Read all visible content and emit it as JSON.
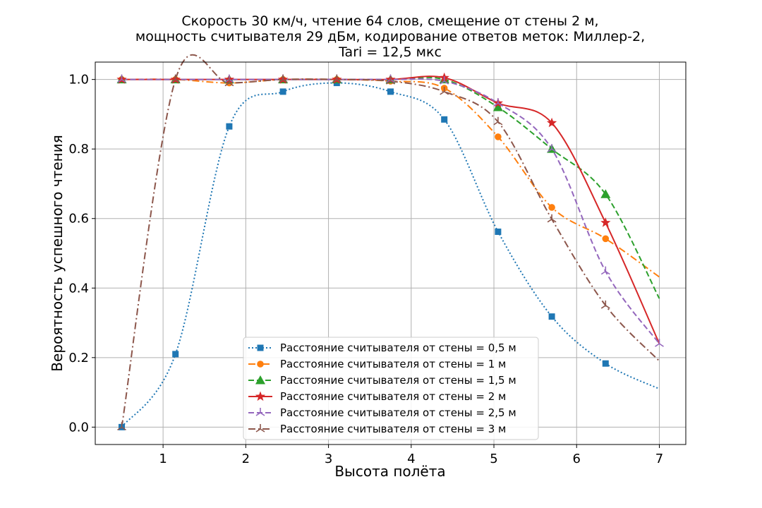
{
  "chart_data": {
    "type": "line",
    "title": [
      "Скорость 30 км/ч, чтение 64 слов, смещение от стены 2 м,",
      "мощность считывателя 29 дБм, кодирование ответов меток: Миллер-2,",
      "Tari = 12,5 мкс"
    ],
    "xlabel": "Высота полёта",
    "ylabel": "Вероятность успешного чтения",
    "xlim": [
      0.18,
      7.32
    ],
    "ylim": [
      -0.05,
      1.05
    ],
    "xticks": [
      "1",
      "2",
      "3",
      "4",
      "5",
      "6",
      "7"
    ],
    "yticks": [
      "0.0",
      "0.2",
      "0.4",
      "0.6",
      "0.8",
      "1.0"
    ],
    "grid": true,
    "legend_position": "lower-center",
    "series": [
      {
        "name": "Расстояние считывателя от стены = 0,5 м",
        "color": "#1f77b4",
        "style": "dotted",
        "marker": "square",
        "x": [
          0.5,
          1.15,
          1.8,
          2.45,
          3.1,
          3.75,
          4.4,
          5.05,
          5.7,
          6.35,
          7.0
        ],
        "y": [
          0.0,
          0.21,
          0.865,
          0.965,
          0.99,
          0.965,
          0.885,
          0.562,
          0.318,
          0.183,
          0.11
        ],
        "marker_x": [
          0.5,
          1.15,
          1.8,
          2.45,
          3.1,
          3.75,
          4.4,
          5.05,
          5.7,
          6.35
        ],
        "marker_y": [
          0.0,
          0.21,
          0.865,
          0.965,
          0.99,
          0.965,
          0.885,
          0.562,
          0.318,
          0.183
        ]
      },
      {
        "name": "Расстояние считывателя от стены = 1 м",
        "color": "#ff7f0e",
        "style": "dashdot",
        "marker": "circle",
        "x": [
          0.5,
          1.15,
          1.8,
          2.45,
          3.1,
          3.75,
          4.4,
          5.05,
          5.7,
          6.35,
          7.0
        ],
        "y": [
          1.0,
          1.0,
          0.99,
          1.0,
          1.0,
          0.995,
          0.975,
          0.835,
          0.632,
          0.542,
          0.432
        ],
        "marker_x": [
          0.5,
          1.15,
          1.8,
          2.45,
          3.1,
          3.75,
          4.4,
          5.05,
          5.7,
          6.35
        ],
        "marker_y": [
          1.0,
          1.0,
          0.99,
          1.0,
          1.0,
          0.995,
          0.975,
          0.835,
          0.632,
          0.542
        ]
      },
      {
        "name": "Расстояние считывателя от стены = 1,5 м",
        "color": "#2ca02c",
        "style": "dashed",
        "marker": "triangle",
        "x": [
          0.5,
          1.15,
          1.8,
          2.45,
          3.1,
          3.75,
          4.4,
          5.05,
          5.7,
          6.35,
          7.0
        ],
        "y": [
          1.0,
          1.0,
          1.0,
          1.0,
          1.0,
          1.0,
          1.0,
          0.92,
          0.8,
          0.67,
          0.37
        ],
        "marker_x": [
          0.5,
          1.15,
          1.8,
          2.45,
          3.1,
          3.75,
          4.4,
          5.05,
          5.7,
          6.35
        ],
        "marker_y": [
          1.0,
          1.0,
          1.0,
          1.0,
          1.0,
          1.0,
          1.0,
          0.92,
          0.8,
          0.67
        ]
      },
      {
        "name": "Расстояние считывателя от стены = 2 м",
        "color": "#d62728",
        "style": "solid",
        "marker": "star",
        "x": [
          0.5,
          1.15,
          1.8,
          2.45,
          3.1,
          3.75,
          4.4,
          5.05,
          5.7,
          6.35,
          7.0
        ],
        "y": [
          1.0,
          1.0,
          1.0,
          1.0,
          1.0,
          1.0,
          1.005,
          0.932,
          0.875,
          0.588,
          0.24
        ],
        "marker_x": [
          0.5,
          1.15,
          1.8,
          2.45,
          3.1,
          3.75,
          4.4,
          5.05,
          5.7,
          6.35
        ],
        "marker_y": [
          1.0,
          1.0,
          1.0,
          1.0,
          1.0,
          1.0,
          1.005,
          0.932,
          0.875,
          0.588
        ]
      },
      {
        "name": "Расстояние считывателя от стены = 2,5 м",
        "color": "#9467bd",
        "style": "dashed",
        "marker": "tri",
        "x": [
          0.5,
          1.15,
          1.8,
          2.45,
          3.1,
          3.75,
          4.4,
          5.05,
          5.7,
          6.35,
          7.0
        ],
        "y": [
          1.0,
          1.0,
          1.0,
          1.0,
          1.0,
          1.0,
          0.995,
          0.932,
          0.8,
          0.448,
          0.24
        ],
        "marker_x": [
          0.5,
          1.15,
          1.8,
          2.45,
          3.1,
          3.75,
          4.4,
          5.05,
          5.7,
          6.35,
          7.0
        ],
        "marker_y": [
          1.0,
          1.0,
          1.0,
          1.0,
          1.0,
          1.0,
          0.995,
          0.932,
          0.8,
          0.448,
          0.24
        ]
      },
      {
        "name": "Расстояние считывателя от стены = 3 м",
        "color": "#8c564b",
        "style": "dashdot",
        "marker": "tri",
        "x": [
          0.5,
          1.15,
          1.8,
          2.45,
          3.1,
          3.75,
          4.4,
          5.05,
          5.7,
          6.35,
          7.0
        ],
        "y": [
          0.0,
          1.0,
          0.99,
          1.0,
          1.0,
          0.995,
          0.965,
          0.878,
          0.598,
          0.35,
          0.19
        ],
        "marker_x": [
          0.5,
          1.15,
          1.8,
          2.45,
          3.1,
          3.75,
          4.4,
          5.05,
          5.7,
          6.35
        ],
        "marker_y": [
          0.0,
          1.0,
          0.99,
          1.0,
          1.0,
          0.995,
          0.965,
          0.878,
          0.598,
          0.35
        ]
      }
    ]
  }
}
